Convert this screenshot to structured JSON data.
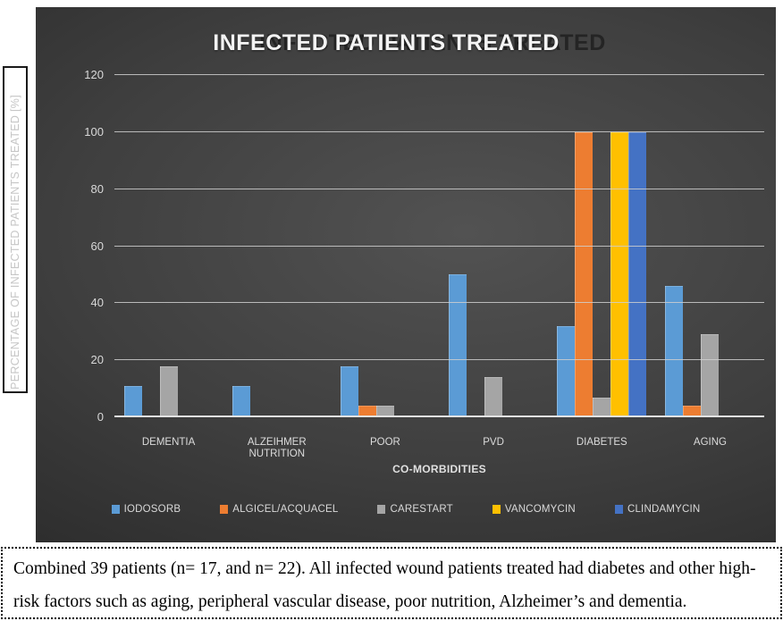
{
  "title": "INFECTED PATIENTS TREATED",
  "title_ghost": "INFECTED PATIENTS TREATED",
  "y_axis_label": "PERCENTAGE OF INFECTED PATIENTS TREATED [%]",
  "x_axis_title": "CO-MORBIDITIES",
  "caption": "Combined 39 patients (n= 17, and n= 22). All infected wound patients treated had diabetes and other high-risk factors such as aging, peripheral vascular disease, poor nutrition, Alzheimer’s and dementia.",
  "chart_data": {
    "type": "bar",
    "title": "INFECTED PATIENTS TREATED",
    "xlabel": "CO-MORBIDITIES",
    "ylabel": "PERCENTAGE OF INFECTED PATIENTS TREATED [%]",
    "ylim": [
      0,
      120
    ],
    "yticks": [
      0,
      20,
      40,
      60,
      80,
      100,
      120
    ],
    "grid": true,
    "legend_position": "bottom",
    "background": "dark-gradient",
    "categories": [
      "DEMENTIA",
      "ALZEIHMER NUTRITION",
      "POOR",
      "PVD",
      "DIABETES",
      "AGING"
    ],
    "series": [
      {
        "name": "IODOSORB",
        "color": "#5B9BD5",
        "values": [
          11,
          11,
          18,
          50,
          32,
          46
        ]
      },
      {
        "name": "ALGICEL/ACQUACEL",
        "color": "#ED7D31",
        "values": [
          0,
          0,
          4,
          0,
          100,
          4
        ]
      },
      {
        "name": "CARESTART",
        "color": "#A5A5A5",
        "values": [
          18,
          0,
          4,
          14,
          7,
          29
        ]
      },
      {
        "name": "VANCOMYCIN",
        "color": "#FFC000",
        "values": [
          0,
          0,
          0,
          0,
          100,
          0
        ]
      },
      {
        "name": "CLINDAMYCIN",
        "color": "#4472C4",
        "values": [
          0,
          0,
          0,
          0,
          100,
          0
        ]
      }
    ]
  }
}
